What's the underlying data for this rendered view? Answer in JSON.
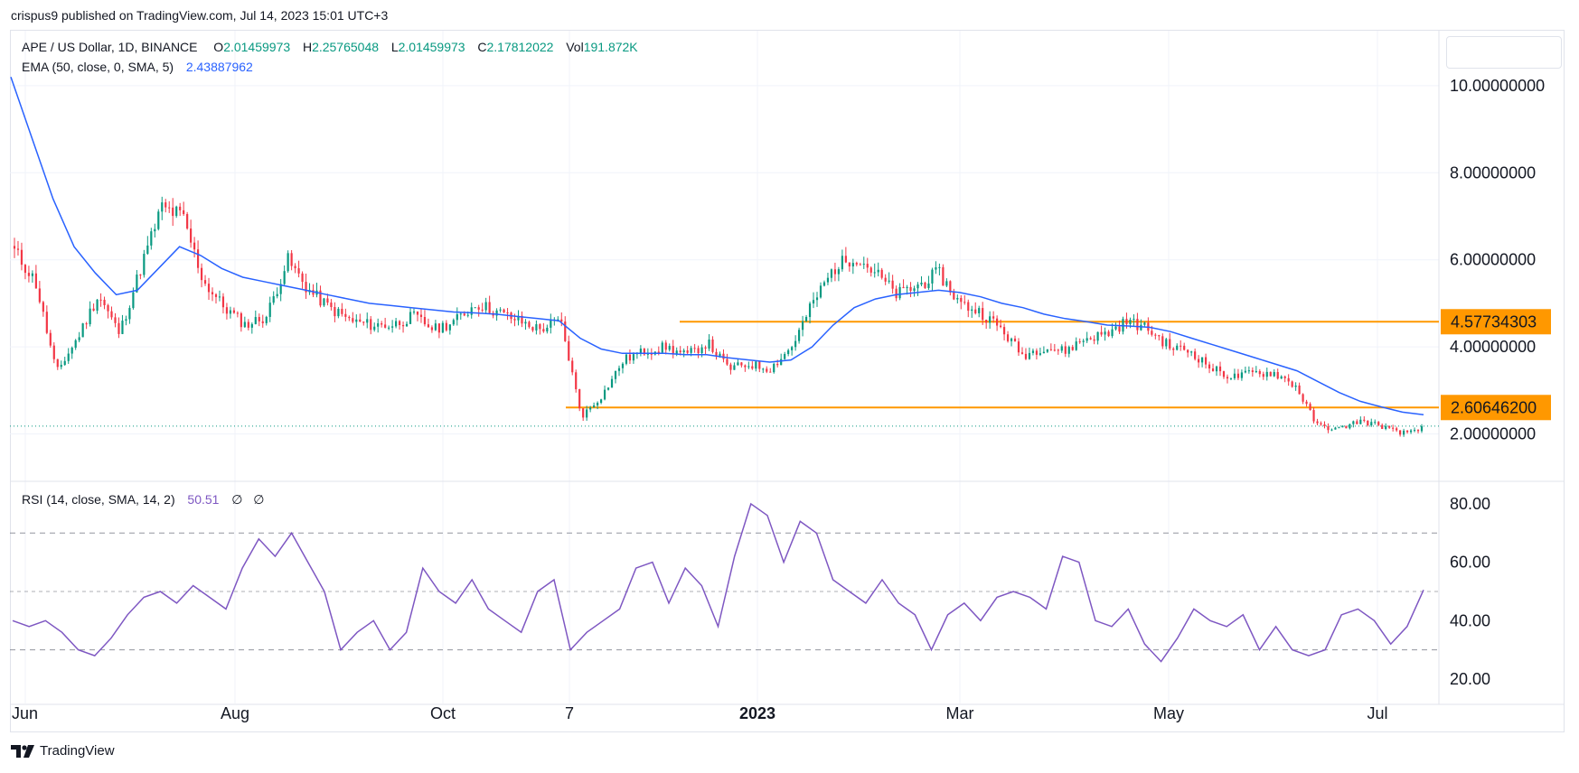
{
  "header": {
    "published_by": "crispus9 published on TradingView.com, Jul 14, 2023 15:01 UTC+3"
  },
  "legend": {
    "symbol": "APE / US Dollar, 1D, BINANCE",
    "o_label": "O",
    "o_value": "2.01459973",
    "h_label": "H",
    "h_value": "2.25765048",
    "l_label": "L",
    "l_value": "2.01459973",
    "c_label": "C",
    "c_value": "2.17812022",
    "vol_label": "Vol",
    "vol_value": "191.872K",
    "ema_label": "EMA (50, close, 0, SMA, 5)",
    "ema_value": "2.43887962",
    "rsi_label": "RSI (14, close, SMA, 14, 2)",
    "rsi_value": "50.51",
    "rsi_extra1": "∅",
    "rsi_extra2": "∅"
  },
  "footer": {
    "brand": "TradingView"
  },
  "colors": {
    "up": "#089981",
    "down": "#f23645",
    "ema": "#2962ff",
    "rsi": "#7e57c2",
    "level": "#ff9800",
    "grid": "#f0f3fa"
  },
  "chart_data": [
    {
      "type": "candlestick",
      "title": "",
      "x_ticks": [
        "Jun",
        "Aug",
        "Oct",
        "7",
        "2023",
        "Mar",
        "May",
        "Jul"
      ],
      "y_ticks": [
        "10.00000000",
        "8.00000000",
        "6.00000000",
        "4.00000000",
        "2.00000000"
      ],
      "ylim": [
        1.0,
        11.0
      ],
      "levels": [
        {
          "value": 4.57734303,
          "label": "4.57734303"
        },
        {
          "value": 2.606462,
          "label": "2.60646200"
        }
      ],
      "last_close": 2.17812022,
      "weekly_close": [
        6.2,
        5.5,
        3.4,
        4.2,
        5.2,
        4.3,
        5.8,
        7.2,
        7.0,
        5.5,
        4.9,
        4.5,
        4.7,
        6.0,
        5.3,
        4.9,
        4.6,
        4.5,
        4.5,
        4.7,
        4.4,
        4.6,
        5.0,
        4.8,
        4.6,
        4.4,
        4.6,
        2.4,
        2.9,
        3.7,
        3.9,
        4.0,
        3.8,
        4.1,
        3.5,
        3.6,
        3.5,
        4.0,
        5.0,
        5.8,
        6.1,
        5.7,
        5.2,
        5.4,
        5.7,
        5.0,
        4.8,
        4.4,
        3.8,
        4.0,
        3.9,
        4.2,
        4.3,
        4.6,
        4.4,
        4.0,
        3.9,
        3.5,
        3.3,
        3.4,
        3.4,
        3.1,
        2.2,
        2.1,
        2.3,
        2.2,
        2.0,
        2.15
      ],
      "series": [
        {
          "name": "EMA (50, close, 0, SMA, 5)",
          "values": [
            10.2,
            8.8,
            7.4,
            6.3,
            5.7,
            5.2,
            5.3,
            5.8,
            6.3,
            6.1,
            5.8,
            5.6,
            5.5,
            5.4,
            5.3,
            5.2,
            5.1,
            5.0,
            4.95,
            4.9,
            4.85,
            4.8,
            4.78,
            4.75,
            4.7,
            4.65,
            4.6,
            4.2,
            3.95,
            3.85,
            3.85,
            3.85,
            3.82,
            3.82,
            3.75,
            3.7,
            3.65,
            3.7,
            4.0,
            4.5,
            4.9,
            5.1,
            5.2,
            5.25,
            5.3,
            5.25,
            5.15,
            5.0,
            4.9,
            4.75,
            4.65,
            4.58,
            4.5,
            4.48,
            4.45,
            4.35,
            4.2,
            4.05,
            3.9,
            3.75,
            3.6,
            3.45,
            3.2,
            2.95,
            2.75,
            2.62,
            2.5,
            2.44
          ]
        }
      ]
    },
    {
      "type": "line",
      "title": "",
      "y_ticks": [
        "80.00",
        "60.00",
        "40.00",
        "20.00"
      ],
      "ylim": [
        14,
        86
      ],
      "bands": [
        70,
        50,
        30
      ],
      "series": [
        {
          "name": "RSI (14, close, SMA, 14, 2)",
          "values": [
            40,
            38,
            40,
            36,
            30,
            28,
            34,
            42,
            48,
            50,
            46,
            52,
            48,
            44,
            58,
            68,
            62,
            70,
            60,
            50,
            30,
            36,
            40,
            30,
            36,
            58,
            50,
            46,
            54,
            44,
            40,
            36,
            50,
            54,
            30,
            36,
            40,
            44,
            58,
            60,
            46,
            58,
            52,
            38,
            62,
            80,
            76,
            60,
            74,
            70,
            54,
            50,
            46,
            54,
            46,
            42,
            30,
            42,
            46,
            40,
            48,
            50,
            48,
            44,
            62,
            60,
            40,
            38,
            44,
            32,
            26,
            34,
            44,
            40,
            38,
            42,
            30,
            38,
            30,
            28,
            30,
            42,
            44,
            40,
            32,
            38,
            50.51
          ]
        }
      ]
    }
  ]
}
